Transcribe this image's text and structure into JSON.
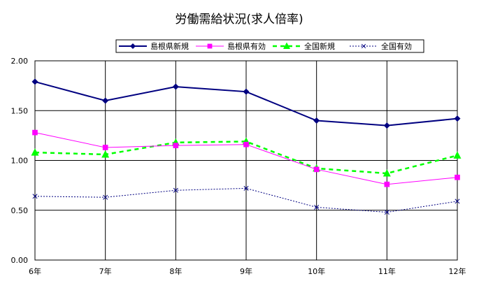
{
  "chart_data": {
    "type": "line",
    "title": "労働需給状況(求人倍率)",
    "xlabel": "",
    "ylabel": "",
    "categories": [
      "6年",
      "7年",
      "8年",
      "9年",
      "10年",
      "11年",
      "12年"
    ],
    "ylim": [
      0,
      2
    ],
    "yticks": [
      "0.00",
      "0.50",
      "1.00",
      "1.50",
      "2.00"
    ],
    "grid": true,
    "legend_position": "top",
    "series": [
      {
        "name": "島根県新規",
        "values": [
          1.79,
          1.6,
          1.74,
          1.69,
          1.4,
          1.35,
          1.42
        ],
        "color": "#000080",
        "marker": "diamond",
        "line": "solid-thick"
      },
      {
        "name": "島根県有効",
        "values": [
          1.28,
          1.13,
          1.15,
          1.16,
          0.91,
          0.76,
          0.83
        ],
        "color": "#ff00ff",
        "marker": "square",
        "line": "solid"
      },
      {
        "name": "全国新規",
        "values": [
          1.08,
          1.06,
          1.18,
          1.19,
          0.92,
          0.87,
          1.05
        ],
        "color": "#00ff00",
        "marker": "triangle",
        "line": "dashed"
      },
      {
        "name": "全国有効",
        "values": [
          0.64,
          0.63,
          0.7,
          0.72,
          0.53,
          0.48,
          0.59
        ],
        "color": "#000080",
        "marker": "x",
        "line": "dotted"
      }
    ]
  }
}
